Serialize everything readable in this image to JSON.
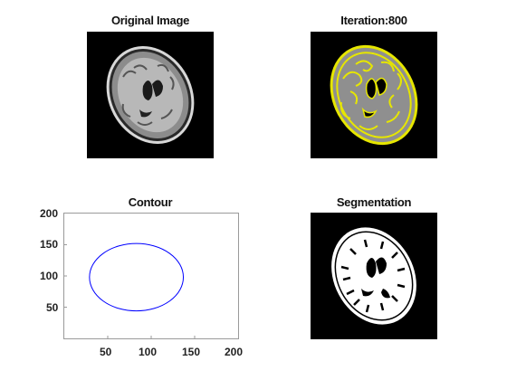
{
  "panels": {
    "original": {
      "title": "Original Image"
    },
    "iteration": {
      "title": "Iteration:800"
    },
    "contour": {
      "title": "Contour"
    },
    "segmentation": {
      "title": "Segmentation"
    }
  },
  "colors": {
    "contour_line": "#0000ff",
    "iteration_overlay": "#e6e600",
    "image_background": "#000000"
  },
  "chart_data": {
    "type": "line",
    "title": "Contour",
    "xlabel": "",
    "ylabel": "",
    "xlim": [
      0,
      200
    ],
    "ylim": [
      0,
      200
    ],
    "x_ticks": [
      "50",
      "100",
      "150",
      "200"
    ],
    "y_ticks": [
      "200",
      "150",
      "100",
      "50"
    ],
    "series": [
      {
        "shape": "ellipse",
        "center": [
          83,
          98
        ],
        "radius_x": 54,
        "radius_y": 54
      }
    ]
  }
}
